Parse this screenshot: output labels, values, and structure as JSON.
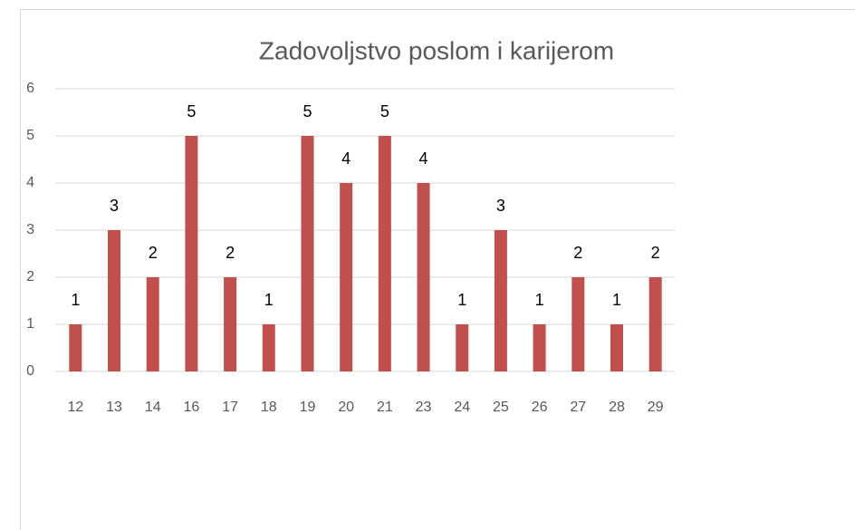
{
  "chart_data": {
    "type": "bar",
    "title": "Zadovoljstvo poslom i karijerom",
    "categories": [
      "12",
      "13",
      "14",
      "16",
      "17",
      "18",
      "19",
      "20",
      "21",
      "23",
      "24",
      "25",
      "26",
      "27",
      "28",
      "29"
    ],
    "values": [
      1,
      3,
      2,
      5,
      2,
      1,
      5,
      4,
      5,
      4,
      1,
      3,
      1,
      2,
      1,
      2
    ],
    "color": "#c0504d",
    "ylim": [
      0,
      6
    ],
    "yticks": [
      0,
      1,
      2,
      3,
      4,
      5,
      6
    ],
    "grid": true
  }
}
